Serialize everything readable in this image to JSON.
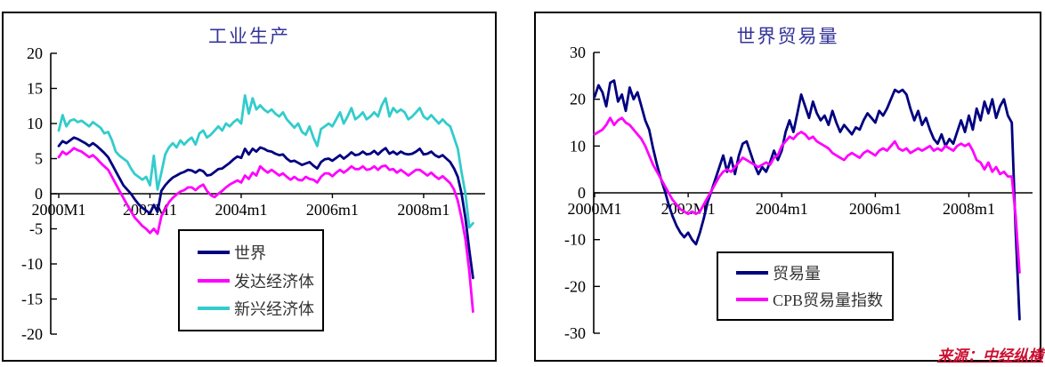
{
  "source_note": "来源：中经纵横",
  "colors": {
    "navy": "#000080",
    "magenta": "#FF00FF",
    "cyan": "#33CCCC",
    "title": "#333399",
    "axis": "#000000",
    "source": "#CC1133"
  },
  "chart_data": [
    {
      "type": "line",
      "title": "工业生产",
      "x_unit": "month",
      "x_start": "2000M1",
      "x_end": "2009M2",
      "x_tick_labels": [
        "2000M1",
        "2002M1",
        "2004m1",
        "2006m1",
        "2008m1"
      ],
      "x_tick_month_index": [
        0,
        24,
        48,
        72,
        96
      ],
      "ylim": [
        -20,
        20
      ],
      "y_tick_step": 5,
      "y_tick_labels": [
        "20",
        "15",
        "10",
        "5",
        "0",
        "-5",
        "-10",
        "-15",
        "-20"
      ],
      "grid": false,
      "legend_position": "inside-bottom-left",
      "series": [
        {
          "name": "世界",
          "color": "#000080",
          "values": [
            6.8,
            7.5,
            7.2,
            7.6,
            8.0,
            7.8,
            7.5,
            7.2,
            6.8,
            7.2,
            6.8,
            6.3,
            5.8,
            5.2,
            4.2,
            3.2,
            2.2,
            1.2,
            0.6,
            0.0,
            -0.8,
            -1.5,
            -2.0,
            -2.4,
            -2.8,
            -1.6,
            -2.6,
            0.4,
            1.2,
            1.8,
            2.3,
            2.6,
            2.9,
            3.1,
            3.4,
            3.3,
            3.0,
            3.4,
            3.2,
            2.6,
            2.7,
            3.1,
            3.5,
            3.6,
            4.0,
            4.4,
            4.9,
            5.3,
            5.1,
            6.4,
            5.6,
            6.4,
            6.0,
            6.6,
            6.4,
            6.1,
            6.0,
            5.7,
            5.5,
            5.6,
            5.0,
            4.6,
            4.7,
            4.4,
            4.1,
            4.3,
            4.5,
            4.0,
            3.6,
            4.5,
            4.9,
            5.0,
            4.7,
            5.1,
            5.5,
            5.0,
            5.4,
            5.9,
            5.5,
            5.6,
            6.0,
            5.6,
            5.7,
            6.1,
            5.6,
            6.1,
            6.5,
            5.7,
            6.0,
            5.6,
            6.0,
            5.7,
            5.6,
            5.7,
            6.0,
            6.4,
            5.6,
            5.7,
            6.0,
            5.5,
            5.2,
            5.5,
            5.0,
            4.5,
            3.6,
            2.4,
            0.0,
            -3.5,
            -8.0,
            -12.0
          ]
        },
        {
          "name": "发达经济体",
          "color": "#FF00FF",
          "values": [
            5.2,
            6.0,
            5.6,
            6.0,
            6.5,
            6.2,
            6.0,
            5.6,
            5.2,
            5.5,
            5.0,
            4.4,
            3.9,
            3.4,
            2.4,
            1.4,
            0.4,
            -0.6,
            -1.6,
            -2.5,
            -3.4,
            -4.0,
            -4.6,
            -5.0,
            -5.6,
            -5.0,
            -5.7,
            -3.2,
            -2.2,
            -1.2,
            -0.6,
            -0.1,
            0.3,
            0.5,
            0.9,
            0.9,
            0.5,
            1.0,
            1.3,
            0.4,
            -0.2,
            -0.5,
            0.0,
            0.4,
            0.9,
            1.3,
            1.6,
            1.9,
            1.6,
            2.6,
            2.1,
            3.0,
            2.6,
            3.9,
            3.4,
            3.0,
            3.4,
            3.0,
            2.6,
            2.9,
            2.4,
            2.0,
            2.4,
            2.0,
            1.9,
            2.4,
            2.1,
            2.0,
            1.6,
            2.4,
            2.9,
            2.9,
            2.5,
            3.0,
            3.4,
            3.0,
            3.4,
            3.9,
            3.5,
            3.5,
            3.9,
            3.4,
            3.5,
            3.9,
            3.4,
            3.9,
            4.0,
            3.4,
            3.5,
            3.0,
            3.4,
            3.0,
            2.6,
            3.0,
            3.4,
            3.4,
            3.0,
            2.6,
            3.0,
            2.5,
            2.1,
            2.5,
            2.0,
            1.5,
            0.6,
            -1.0,
            -3.5,
            -6.5,
            -11.0,
            -16.8
          ]
        },
        {
          "name": "新兴经济体",
          "color": "#33CCCC",
          "values": [
            9.0,
            11.2,
            9.6,
            10.4,
            10.6,
            10.2,
            10.4,
            10.0,
            9.6,
            10.2,
            9.8,
            9.4,
            8.6,
            8.8,
            7.6,
            6.0,
            5.4,
            5.0,
            4.6,
            3.6,
            2.8,
            2.4,
            2.0,
            2.4,
            1.2,
            5.4,
            0.6,
            3.0,
            5.6,
            6.6,
            7.2,
            6.6,
            7.6,
            7.0,
            7.6,
            8.0,
            7.0,
            8.6,
            9.0,
            8.0,
            8.4,
            9.0,
            9.6,
            9.0,
            10.0,
            9.6,
            10.2,
            10.6,
            10.0,
            14.0,
            11.4,
            13.6,
            12.0,
            12.6,
            12.0,
            11.6,
            12.0,
            11.4,
            11.0,
            11.6,
            10.6,
            10.0,
            9.4,
            10.0,
            8.8,
            8.4,
            9.6,
            8.0,
            6.8,
            9.2,
            9.6,
            10.0,
            9.6,
            10.6,
            11.6,
            10.0,
            11.0,
            12.2,
            10.6,
            11.0,
            11.6,
            10.6,
            11.0,
            11.6,
            11.0,
            12.6,
            13.6,
            11.0,
            12.2,
            11.6,
            12.0,
            11.6,
            10.6,
            11.0,
            11.6,
            12.2,
            11.0,
            10.6,
            11.2,
            10.6,
            10.0,
            10.6,
            10.0,
            9.6,
            8.0,
            6.4,
            3.0,
            0.0,
            -4.8,
            -4.2
          ]
        }
      ]
    },
    {
      "type": "line",
      "title": "世界贸易量",
      "x_unit": "month",
      "x_start": "2000M1",
      "x_end": "2009M2",
      "x_tick_labels": [
        "2000M1",
        "2002M1",
        "2004m1",
        "2006m1",
        "2008m1"
      ],
      "x_tick_month_index": [
        0,
        24,
        48,
        72,
        96
      ],
      "ylim": [
        -30,
        30
      ],
      "y_tick_step": 10,
      "y_tick_labels": [
        "30",
        "20",
        "10",
        "0",
        "-10",
        "-20",
        "-30"
      ],
      "grid": false,
      "legend_position": "inside-bottom-center",
      "series": [
        {
          "name": "贸易量",
          "color": "#000080",
          "values": [
            20.5,
            23.0,
            21.5,
            18.5,
            23.5,
            24.0,
            19.5,
            21.0,
            17.5,
            22.5,
            20.0,
            21.5,
            18.5,
            15.5,
            13.5,
            9.5,
            6.0,
            3.0,
            0.5,
            -2.5,
            -5.0,
            -7.0,
            -8.5,
            -9.5,
            -8.5,
            -10.0,
            -11.0,
            -8.5,
            -5.5,
            -2.0,
            0.5,
            3.0,
            5.5,
            8.0,
            4.5,
            7.5,
            4.0,
            8.0,
            10.5,
            11.0,
            8.5,
            6.0,
            4.0,
            5.5,
            4.5,
            6.5,
            9.0,
            7.0,
            9.0,
            13.0,
            15.5,
            13.0,
            17.0,
            21.0,
            18.5,
            16.0,
            19.5,
            17.0,
            15.5,
            16.5,
            14.5,
            17.5,
            15.0,
            13.0,
            14.5,
            13.5,
            12.5,
            14.0,
            13.5,
            15.5,
            17.0,
            16.0,
            15.0,
            17.5,
            16.5,
            18.0,
            20.0,
            22.0,
            21.5,
            22.0,
            21.0,
            18.0,
            15.5,
            17.5,
            14.5,
            16.0,
            13.5,
            11.5,
            10.5,
            12.5,
            10.0,
            11.5,
            10.5,
            13.0,
            15.5,
            13.0,
            16.5,
            13.5,
            18.0,
            15.5,
            19.5,
            17.0,
            20.0,
            16.0,
            18.5,
            20.0,
            16.5,
            15.0,
            -8.0,
            -27.0
          ]
        },
        {
          "name": "CPB贸易量指数",
          "color": "#FF00FF",
          "values": [
            12.5,
            13.0,
            13.5,
            14.5,
            16.0,
            14.5,
            15.5,
            16.0,
            15.0,
            14.5,
            13.5,
            12.5,
            11.5,
            10.0,
            8.0,
            6.0,
            4.5,
            3.0,
            1.5,
            0.0,
            -1.5,
            -2.5,
            -3.5,
            -4.0,
            -4.5,
            -4.0,
            -4.5,
            -4.0,
            -2.5,
            -1.0,
            0.5,
            2.0,
            3.5,
            4.5,
            5.0,
            4.5,
            5.5,
            6.5,
            7.5,
            7.0,
            6.5,
            6.0,
            5.5,
            6.0,
            6.5,
            6.0,
            7.5,
            8.0,
            10.0,
            11.0,
            12.0,
            11.5,
            12.5,
            13.0,
            12.5,
            11.5,
            12.0,
            11.0,
            10.5,
            10.0,
            9.5,
            8.5,
            8.0,
            7.5,
            7.0,
            8.0,
            8.5,
            8.0,
            7.5,
            8.5,
            9.0,
            8.5,
            8.0,
            9.0,
            9.5,
            9.0,
            10.0,
            11.0,
            9.5,
            9.0,
            9.5,
            8.5,
            9.0,
            9.5,
            9.0,
            9.5,
            10.0,
            9.0,
            9.5,
            9.0,
            10.0,
            9.5,
            9.0,
            10.0,
            10.5,
            10.0,
            10.5,
            9.0,
            7.0,
            6.5,
            5.0,
            6.5,
            4.5,
            5.5,
            4.0,
            4.5,
            3.5,
            3.5,
            -5.0,
            -17.0
          ]
        }
      ]
    }
  ]
}
